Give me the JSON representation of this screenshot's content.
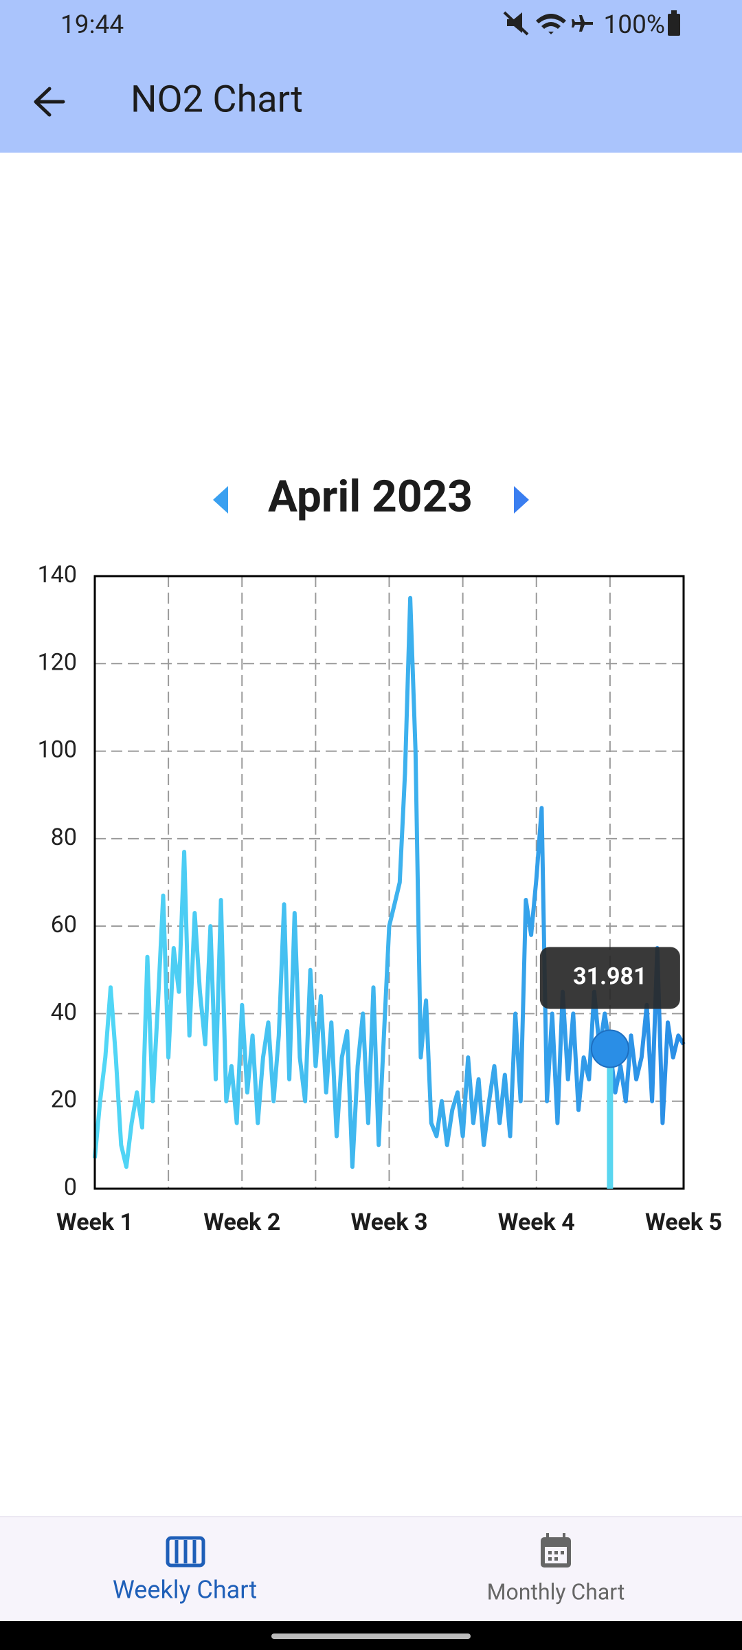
{
  "status_bar": {
    "time": "19:44",
    "battery": "100%"
  },
  "app_bar": {
    "title": "NO2 Chart"
  },
  "month_selector": {
    "label": "April 2023"
  },
  "bottom_nav": {
    "items": [
      "Weekly Chart",
      "Monthly Chart"
    ]
  },
  "chart_data": {
    "type": "line",
    "x": [
      0,
      6,
      12,
      18,
      24,
      30,
      36,
      42,
      48,
      54,
      60,
      66,
      72,
      78,
      84,
      90,
      96,
      102,
      108,
      114,
      120,
      126,
      132,
      138,
      144,
      150,
      156,
      162,
      168,
      174,
      180,
      186,
      192,
      198,
      204,
      210,
      216,
      222,
      228,
      234,
      240,
      246,
      252,
      258,
      264,
      270,
      276,
      282,
      288,
      294,
      300,
      306,
      312,
      318,
      324,
      330,
      336,
      342,
      348,
      354,
      360,
      366,
      372,
      378,
      384,
      390,
      396,
      402,
      408,
      414,
      420,
      426,
      432,
      438,
      444,
      450,
      456,
      462,
      468,
      474,
      480,
      486,
      492,
      498,
      504,
      510,
      516,
      522,
      528,
      534,
      540,
      546,
      552,
      558,
      564,
      570,
      576,
      582,
      588,
      594,
      600,
      606,
      612,
      618,
      624,
      630,
      636,
      642,
      648,
      654,
      660,
      666,
      672
    ],
    "series": [
      {
        "name": "NO2",
        "color": "#3aaef0",
        "gradient": [
          "#52d8f6",
          "#2a8ee6"
        ],
        "values": [
          7,
          20,
          30,
          46,
          30,
          10,
          5,
          15,
          22,
          14,
          53,
          20,
          42,
          67,
          30,
          55,
          45,
          77,
          35,
          63,
          45,
          33,
          60,
          25,
          66,
          20,
          28,
          15,
          42,
          22,
          35,
          15,
          30,
          38,
          20,
          35,
          65,
          25,
          63,
          30,
          20,
          50,
          28,
          44,
          22,
          38,
          12,
          30,
          36,
          5,
          28,
          40,
          15,
          46,
          10,
          35,
          60,
          65,
          70,
          95,
          135,
          100,
          30,
          43,
          15,
          12,
          20,
          10,
          18,
          22,
          12,
          30,
          15,
          25,
          10,
          20,
          28,
          15,
          26,
          12,
          40,
          20,
          66,
          58,
          71,
          87,
          20,
          40,
          15,
          45,
          25,
          40,
          18,
          30,
          25,
          45,
          32,
          40,
          31.981,
          22,
          28,
          20,
          35,
          25,
          30,
          42,
          20,
          55,
          15,
          38,
          30,
          35,
          33
        ]
      }
    ],
    "xlim": [
      0,
      672
    ],
    "xticks": [
      {
        "value": 0,
        "label": "Week 1"
      },
      {
        "value": 168,
        "label": "Week 2"
      },
      {
        "value": 336,
        "label": "Week 3"
      },
      {
        "value": 504,
        "label": "Week 4"
      },
      {
        "value": 672,
        "label": "Week 5"
      }
    ],
    "xgrid": [
      84,
      168,
      252,
      336,
      420,
      504,
      588
    ],
    "ylim": [
      0,
      140
    ],
    "yticks": [
      0,
      20,
      40,
      60,
      80,
      100,
      120,
      140
    ],
    "grid": true,
    "highlight": {
      "index": 98
    }
  }
}
